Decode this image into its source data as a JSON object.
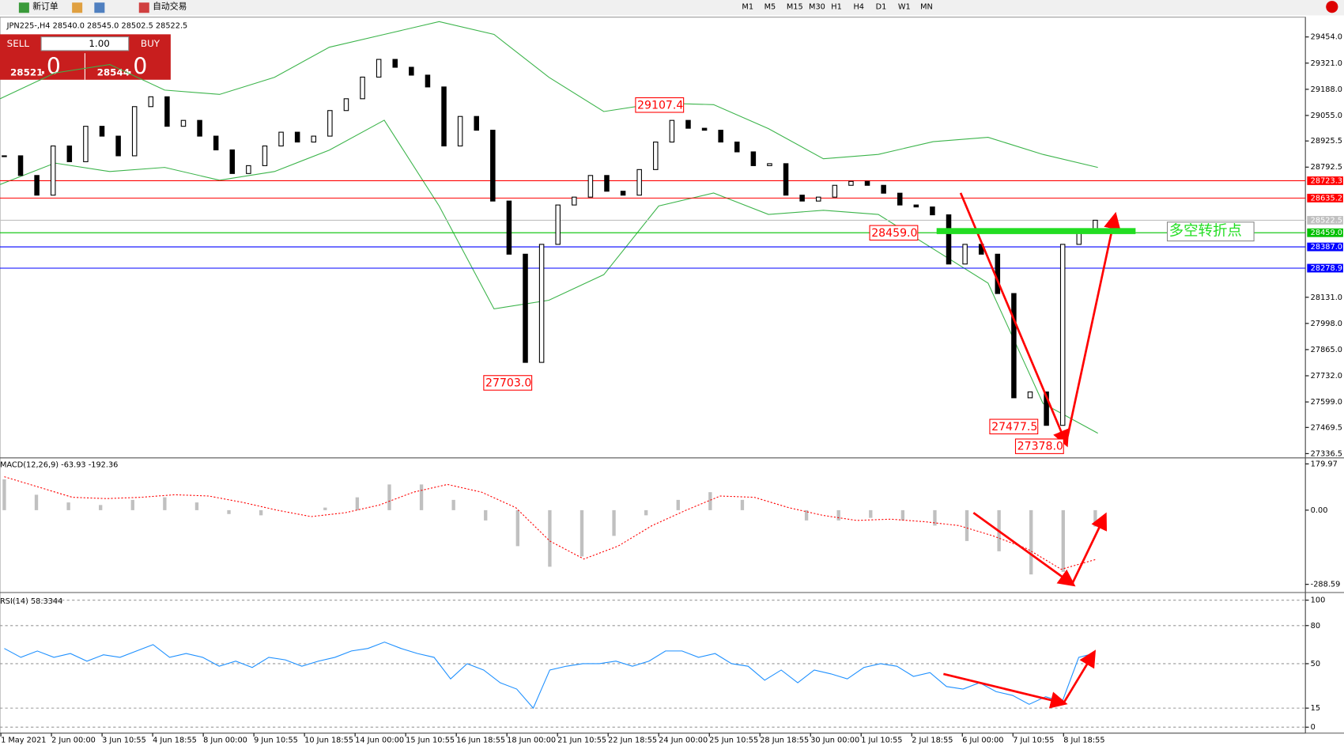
{
  "toolbar": {
    "new_order": "新订单",
    "auto_trading": "自动交易",
    "timeframes": [
      "M1",
      "M5",
      "M15",
      "M30",
      "H1",
      "H4",
      "D1",
      "W1",
      "MN"
    ]
  },
  "trade_panel": {
    "sell": "SELL",
    "lot": "1.00",
    "buy": "BUY",
    "bid_main": "28521",
    "bid_big": ".0",
    "ask_main": "28544",
    "ask_big": ".0"
  },
  "chart_data": [
    {
      "type": "candlestick",
      "title": "JPN225-,H4  28540.0 28545.0 28502.5 28522.5",
      "closes": [
        28850,
        28750,
        28650,
        28900,
        28820,
        29000,
        28950,
        28850,
        29100,
        29150,
        29000,
        29030,
        28950,
        28880,
        28760,
        28800,
        28900,
        28970,
        28920,
        28950,
        29080,
        29140,
        29250,
        29340,
        29300,
        29260,
        29200,
        28900,
        29050,
        28980,
        28620,
        28350,
        27800,
        28400,
        28600,
        28640,
        28750,
        28670,
        28650,
        28780,
        28920,
        29030,
        28990,
        28980,
        28920,
        28870,
        28800,
        28810,
        28650,
        28620,
        28640,
        28700,
        28720,
        28700,
        28660,
        28600,
        28590,
        28550,
        28300,
        28400,
        28350,
        28150,
        27620,
        27650,
        27480,
        28400,
        28470,
        28522.5
      ],
      "bands": {
        "color": "#3cb44b",
        "upper": [
          29140,
          29271,
          29314,
          29184,
          29162,
          29249,
          29402,
          29467,
          29532,
          29467,
          29249,
          29075,
          29118,
          29110,
          28988,
          28835,
          28857,
          28922,
          28944,
          28857,
          28791
        ],
        "lower": [
          28704,
          28813,
          28770,
          28791,
          28726,
          28770,
          28879,
          29031,
          28595,
          28072,
          28116,
          28246,
          28595,
          28661,
          28552,
          28573,
          28552,
          28377,
          28203,
          27592,
          27440
        ]
      },
      "ylim": [
        27319,
        29546
      ],
      "yticks": [
        {
          "value": 29454,
          "label": "29454.0"
        },
        {
          "value": 29321,
          "label": "29321.0"
        },
        {
          "value": 29188,
          "label": "29188.0"
        },
        {
          "value": 29055,
          "label": "29055.0"
        },
        28925.5,
        28792.5,
        {
          "value": 28131,
          "label": "28131.0"
        },
        {
          "value": 27998,
          "label": "27998.0"
        },
        {
          "value": 27865,
          "label": "27865.0"
        },
        {
          "value": 27732,
          "label": "27732.0"
        },
        {
          "value": 27599,
          "label": "27599.0"
        },
        27469.5,
        27336.5
      ],
      "levels": [
        {
          "value": 28723.3,
          "color": "#ff0000"
        },
        {
          "value": 28635.2,
          "color": "#ff0000"
        },
        {
          "value": 28522.5,
          "color": "#c0c0c0"
        },
        {
          "value": 28459,
          "label": "28459.0",
          "color": "#00c000"
        },
        {
          "value": 28387,
          "label": "28387.0",
          "color": "#0000ff"
        },
        {
          "value": 28278.9,
          "color": "#0000ff"
        }
      ],
      "callouts": [
        "29107.4",
        "27703.0",
        "28459.0",
        "27477.5",
        "27378.0"
      ],
      "note": "多空转折点"
    },
    {
      "type": "macd",
      "title": "MACD(12,26,9) -63.93 -192.36",
      "histogram": [
        120,
        60,
        30,
        20,
        40,
        50,
        30,
        -15,
        -20,
        0,
        10,
        50,
        100,
        100,
        40,
        -40,
        -140,
        -220,
        -180,
        -100,
        -20,
        40,
        70,
        40,
        0,
        -40,
        -40,
        -30,
        -40,
        -60,
        -120,
        -160,
        -250,
        -240,
        -63.93
      ],
      "signal": [
        130,
        90,
        50,
        45,
        50,
        60,
        55,
        30,
        0,
        -25,
        -10,
        20,
        70,
        100,
        70,
        10,
        -120,
        -190,
        -140,
        -60,
        0,
        55,
        50,
        10,
        -20,
        -40,
        -35,
        -45,
        -60,
        -100,
        -150,
        -230,
        -192.36
      ],
      "ylim": [
        -317,
        200
      ],
      "yticks": [
        179.97,
        {
          "value": 0,
          "label": "0.00"
        },
        -288.59
      ]
    },
    {
      "type": "line",
      "title": "RSI(14) 58.3344",
      "color": "#1e90ff",
      "values": [
        62,
        55,
        60,
        55,
        58,
        52,
        57,
        55,
        60,
        65,
        55,
        58,
        55,
        48,
        52,
        47,
        55,
        53,
        48,
        52,
        55,
        60,
        62,
        67,
        62,
        58,
        55,
        38,
        50,
        45,
        35,
        30,
        15,
        45,
        48,
        50,
        50,
        52,
        48,
        52,
        60,
        60,
        55,
        58,
        50,
        48,
        37,
        45,
        35,
        45,
        42,
        38,
        47,
        50,
        48,
        40,
        43,
        32,
        30,
        35,
        28,
        25,
        18,
        24,
        20,
        55,
        58.3344
      ],
      "ylim": [
        -4.7,
        104.7
      ],
      "yticks": [
        100,
        80,
        50,
        15,
        0
      ]
    }
  ],
  "dates": [
    "1 May 2021",
    "2 Jun 00:00",
    "3 Jun 10:55",
    "4 Jun 18:55",
    "8 Jun 00:00",
    "9 Jun 10:55",
    "10 Jun 18:55",
    "14 Jun 00:00",
    "15 Jun 10:55",
    "16 Jun 18:55",
    "18 Jun 00:00",
    "21 Jun 10:55",
    "22 Jun 18:55",
    "24 Jun 00:00",
    "25 Jun 10:55",
    "28 Jun 18:55",
    "30 Jun 00:00",
    "1 Jul 10:55",
    "2 Jul 18:55",
    "6 Jul 00:00",
    "7 Jul 10:55",
    "8 Jul 18:55"
  ]
}
